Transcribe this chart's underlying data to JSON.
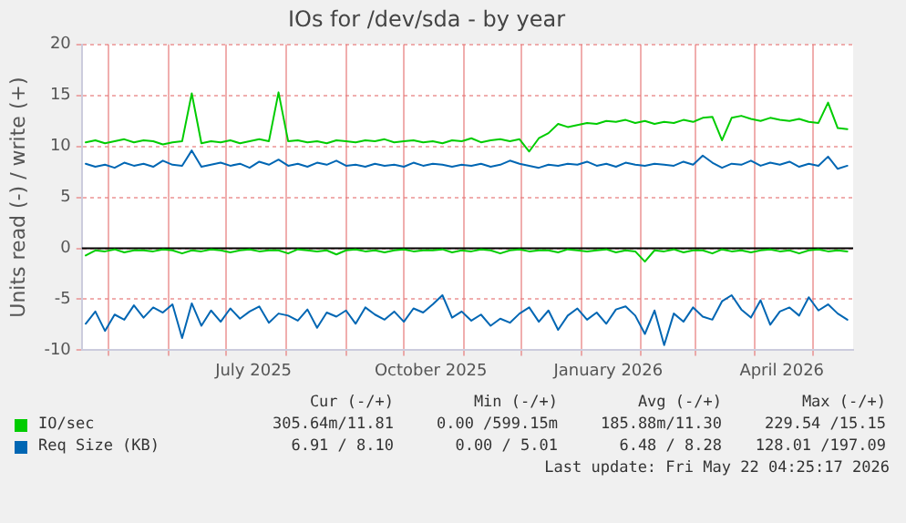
{
  "chart_data": {
    "type": "line",
    "title": "IOs for /dev/sda - by year",
    "ylabel": "Units read (-) / write (+)",
    "x": [
      "2025-04-19",
      "2025-04-24",
      "2025-04-29",
      "2025-05-04",
      "2025-05-09",
      "2025-05-14",
      "2025-05-19",
      "2025-05-24",
      "2025-05-29",
      "2025-06-03",
      "2025-06-08",
      "2025-06-13",
      "2025-06-18",
      "2025-06-23",
      "2025-06-28",
      "2025-07-03",
      "2025-07-08",
      "2025-07-13",
      "2025-07-18",
      "2025-07-23",
      "2025-07-28",
      "2025-08-02",
      "2025-08-07",
      "2025-08-12",
      "2025-08-17",
      "2025-08-22",
      "2025-08-27",
      "2025-09-01",
      "2025-09-06",
      "2025-09-11",
      "2025-09-16",
      "2025-09-21",
      "2025-09-26",
      "2025-10-01",
      "2025-10-06",
      "2025-10-11",
      "2025-10-16",
      "2025-10-21",
      "2025-10-26",
      "2025-10-31",
      "2025-11-05",
      "2025-11-10",
      "2025-11-15",
      "2025-11-20",
      "2025-11-25",
      "2025-11-30",
      "2025-12-05",
      "2025-12-10",
      "2025-12-15",
      "2025-12-20",
      "2025-12-25",
      "2025-12-30",
      "2026-01-04",
      "2026-01-09",
      "2026-01-14",
      "2026-01-19",
      "2026-01-24",
      "2026-01-29",
      "2026-02-03",
      "2026-02-08",
      "2026-02-13",
      "2026-02-18",
      "2026-02-23",
      "2026-02-28",
      "2026-03-05",
      "2026-03-10",
      "2026-03-15",
      "2026-03-20",
      "2026-03-25",
      "2026-03-30",
      "2026-04-04",
      "2026-04-09",
      "2026-04-14",
      "2026-04-19",
      "2026-04-24",
      "2026-04-29",
      "2026-05-04",
      "2026-05-09",
      "2026-05-14",
      "2026-05-19"
    ],
    "series": [
      {
        "name": "IO/sec",
        "color": "#00cc00",
        "values": [
          10.4,
          10.6,
          10.3,
          10.5,
          10.7,
          10.4,
          10.6,
          10.5,
          10.2,
          10.4,
          10.5,
          15.2,
          10.3,
          10.5,
          10.4,
          10.6,
          10.3,
          10.5,
          10.7,
          10.5,
          15.3,
          10.5,
          10.6,
          10.4,
          10.5,
          10.3,
          10.6,
          10.5,
          10.4,
          10.6,
          10.5,
          10.7,
          10.4,
          10.5,
          10.6,
          10.4,
          10.5,
          10.3,
          10.6,
          10.5,
          10.8,
          10.4,
          10.6,
          10.7,
          10.5,
          10.7,
          9.5,
          10.8,
          11.3,
          12.2,
          11.9,
          12.1,
          12.3,
          12.2,
          12.5,
          12.4,
          12.6,
          12.3,
          12.5,
          12.2,
          12.4,
          12.3,
          12.6,
          12.4,
          12.8,
          12.9,
          10.6,
          12.8,
          13.0,
          12.7,
          12.5,
          12.8,
          12.6,
          12.5,
          12.7,
          12.4,
          12.3,
          14.3,
          11.8,
          11.7
        ]
      },
      {
        "color": "#00cc00",
        "values": [
          -0.7,
          -0.2,
          -0.3,
          -0.1,
          -0.4,
          -0.2,
          -0.2,
          -0.3,
          -0.1,
          -0.2,
          -0.5,
          -0.2,
          -0.3,
          -0.1,
          -0.2,
          -0.4,
          -0.2,
          -0.1,
          -0.3,
          -0.2,
          -0.2,
          -0.5,
          -0.1,
          -0.2,
          -0.3,
          -0.2,
          -0.6,
          -0.2,
          -0.1,
          -0.3,
          -0.2,
          -0.4,
          -0.2,
          -0.1,
          -0.3,
          -0.2,
          -0.2,
          -0.1,
          -0.4,
          -0.2,
          -0.3,
          -0.1,
          -0.2,
          -0.5,
          -0.2,
          -0.1,
          -0.3,
          -0.2,
          -0.2,
          -0.4,
          -0.1,
          -0.2,
          -0.3,
          -0.2,
          -0.1,
          -0.4,
          -0.2,
          -0.3,
          -1.3,
          -0.2,
          -0.3,
          -0.1,
          -0.4,
          -0.2,
          -0.2,
          -0.5,
          -0.1,
          -0.3,
          -0.2,
          -0.4,
          -0.2,
          -0.1,
          -0.3,
          -0.2,
          -0.5,
          -0.2,
          -0.1,
          -0.3,
          -0.2,
          -0.3
        ]
      },
      {
        "name": "Req Size (KB)",
        "color": "#0066b3",
        "values": [
          8.3,
          8.0,
          8.2,
          7.9,
          8.4,
          8.1,
          8.3,
          8.0,
          8.6,
          8.2,
          8.1,
          9.6,
          8.0,
          8.2,
          8.4,
          8.1,
          8.3,
          7.9,
          8.5,
          8.2,
          8.7,
          8.1,
          8.3,
          8.0,
          8.4,
          8.2,
          8.6,
          8.1,
          8.2,
          8.0,
          8.3,
          8.1,
          8.2,
          8.0,
          8.4,
          8.1,
          8.3,
          8.2,
          8.0,
          8.2,
          8.1,
          8.3,
          8.0,
          8.2,
          8.6,
          8.3,
          8.1,
          7.9,
          8.2,
          8.1,
          8.3,
          8.2,
          8.5,
          8.1,
          8.3,
          8.0,
          8.4,
          8.2,
          8.1,
          8.3,
          8.2,
          8.1,
          8.5,
          8.2,
          9.1,
          8.4,
          7.9,
          8.3,
          8.2,
          8.6,
          8.1,
          8.4,
          8.2,
          8.5,
          8.0,
          8.3,
          8.1,
          9.0,
          7.8,
          8.1
        ]
      },
      {
        "color": "#0066b3",
        "values": [
          -7.4,
          -6.2,
          -8.1,
          -6.5,
          -7.0,
          -5.6,
          -6.8,
          -5.8,
          -6.3,
          -5.5,
          -8.8,
          -5.4,
          -7.6,
          -6.1,
          -7.2,
          -5.9,
          -6.9,
          -6.2,
          -5.7,
          -7.3,
          -6.4,
          -6.6,
          -7.1,
          -6.0,
          -7.8,
          -6.3,
          -6.7,
          -6.1,
          -7.4,
          -5.8,
          -6.5,
          -7.0,
          -6.2,
          -7.2,
          -5.9,
          -6.3,
          -5.5,
          -4.6,
          -6.8,
          -6.2,
          -7.1,
          -6.5,
          -7.6,
          -6.9,
          -7.3,
          -6.4,
          -5.8,
          -7.2,
          -6.1,
          -8.0,
          -6.6,
          -5.9,
          -7.0,
          -6.3,
          -7.4,
          -6.0,
          -5.7,
          -6.6,
          -8.4,
          -6.1,
          -9.5,
          -6.4,
          -7.2,
          -5.8,
          -6.7,
          -7.0,
          -5.2,
          -4.6,
          -6.0,
          -6.8,
          -5.1,
          -7.5,
          -6.2,
          -5.8,
          -6.6,
          -4.8,
          -6.1,
          -5.5,
          -6.4,
          -7.0
        ]
      }
    ],
    "xlim": [
      "2025-04-17",
      "2026-05-22"
    ],
    "xticks": [
      {
        "value": "2025-05-01",
        "label": null
      },
      {
        "value": "2025-06-01",
        "label": null
      },
      {
        "value": "2025-07-01",
        "label": null
      },
      {
        "value": "2025-07-15",
        "label": "July 2025"
      },
      {
        "value": "2025-08-01",
        "label": null
      },
      {
        "value": "2025-09-01",
        "label": null
      },
      {
        "value": "2025-10-01",
        "label": null
      },
      {
        "value": "2025-10-15",
        "label": "October 2025"
      },
      {
        "value": "2025-11-01",
        "label": null
      },
      {
        "value": "2025-12-01",
        "label": null
      },
      {
        "value": "2026-01-01",
        "label": null
      },
      {
        "value": "2026-01-15",
        "label": "January 2026"
      },
      {
        "value": "2026-02-01",
        "label": null
      },
      {
        "value": "2026-03-01",
        "label": null
      },
      {
        "value": "2026-04-01",
        "label": null
      },
      {
        "value": "2026-04-15",
        "label": "April 2026"
      },
      {
        "value": "2026-05-01",
        "label": null
      }
    ],
    "ylim": [
      -10,
      20
    ],
    "yticks": [
      -10,
      -5,
      0,
      5,
      10,
      15,
      20
    ],
    "grid": true,
    "legend": "bottom",
    "marker": "none",
    "line_style": "solid",
    "ref_lines": [
      {
        "axis": "y",
        "value": 0,
        "color": "#000000"
      }
    ],
    "annotations": [
      "Cur (-/+)",
      "Min (-/+)",
      "Avg (-/+)",
      "Max (-/+)",
      "305.64m/11.81",
      "0.00 /599.15m",
      "185.88m/11.30",
      "229.54 /15.15",
      "6.91 / 8.10",
      "0.00 / 5.01",
      "6.48 / 8.28",
      "128.01 /197.09",
      "Last update: Fri May 22 04:25:17 2026"
    ]
  }
}
